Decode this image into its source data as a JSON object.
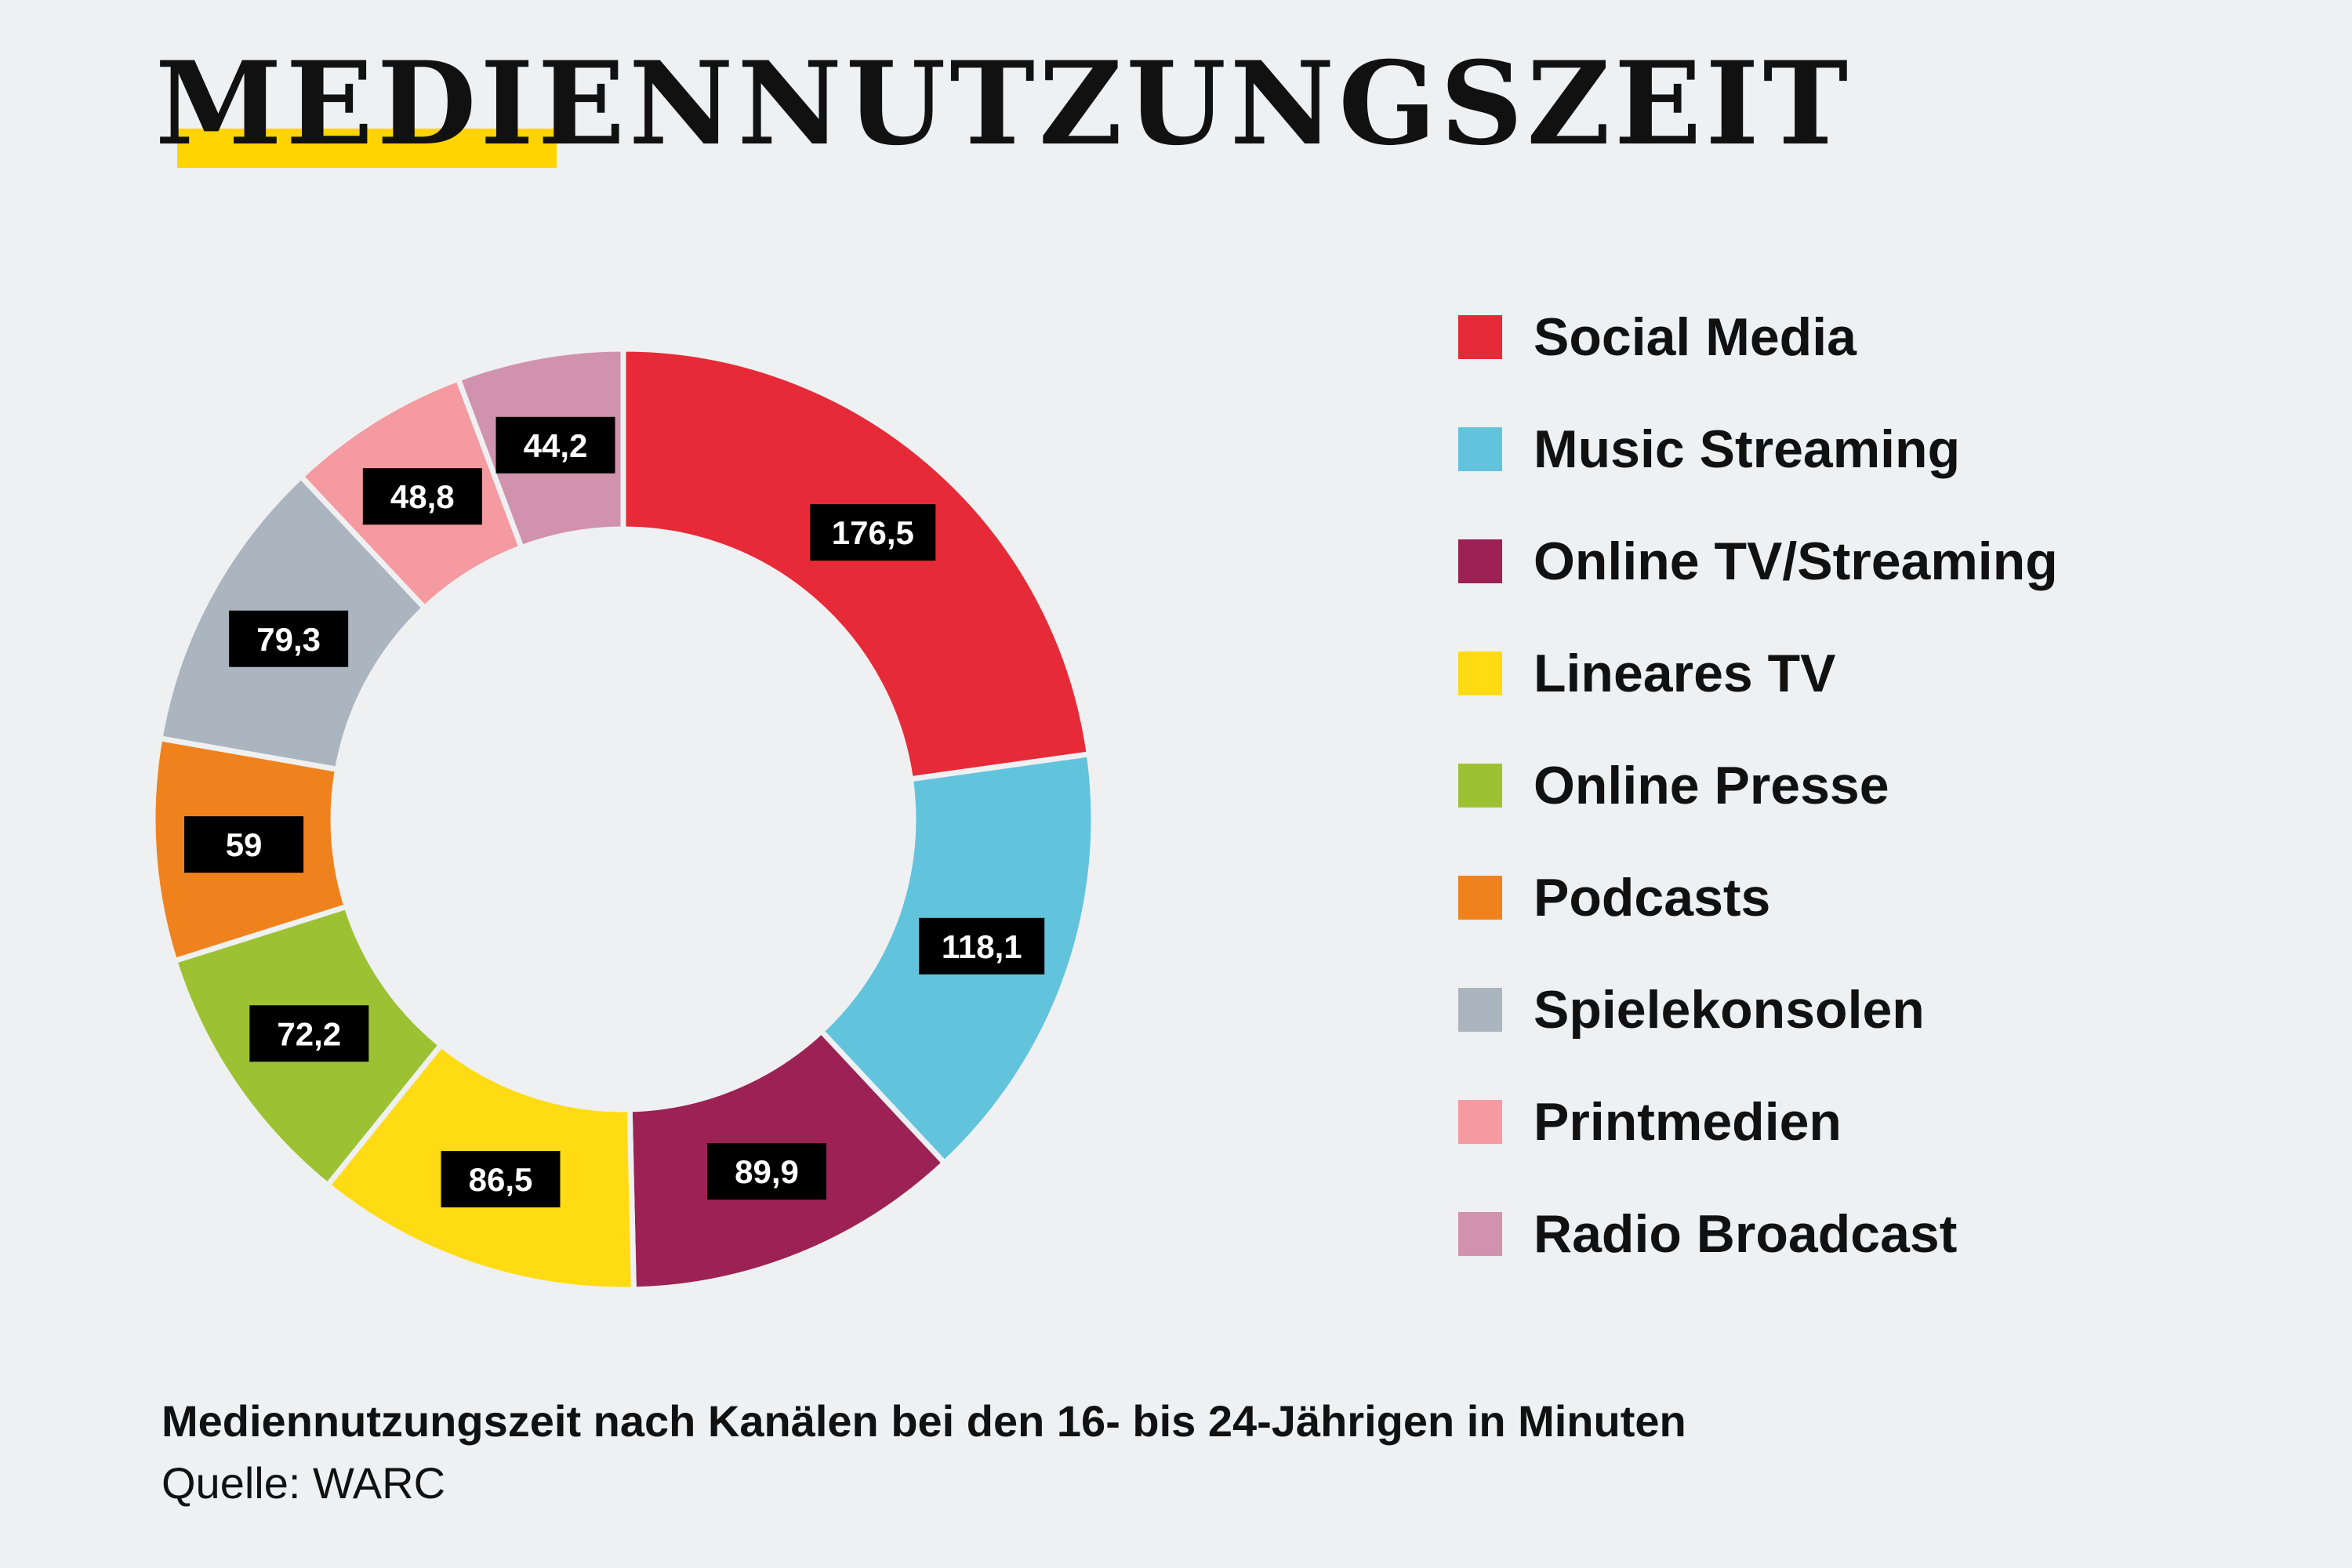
{
  "title": "MEDIENNUTZUNGSZEIT",
  "subtitle": "Mediennutzungszeit nach Kanälen bei den 16- bis 24-Jährigen in Minuten",
  "source_prefix": "Quelle: ",
  "source": "WARC",
  "colors": {
    "accent": "#ffd400",
    "background": "#eff0f1",
    "label_box": "#000000"
  },
  "chart_data": {
    "type": "pie",
    "donut": true,
    "legend_position": "right",
    "categories": [
      "Social Media",
      "Music Streaming",
      "Online TV/Streaming",
      "Lineares TV",
      "Online Presse",
      "Podcasts",
      "Spielekonsolen",
      "Printmedien",
      "Radio Broadcast"
    ],
    "values": [
      176.5,
      118.1,
      89.9,
      86.5,
      72.2,
      59,
      79.3,
      48.8,
      44.2
    ],
    "value_labels": [
      "176,5",
      "118,1",
      "89,9",
      "86,5",
      "72,2",
      "59",
      "79,3",
      "48,8",
      "44,2"
    ],
    "colors": [
      "#e62a37",
      "#62c3dd",
      "#9c2255",
      "#ffdb14",
      "#9cc234",
      "#f0821e",
      "#abb5bf",
      "#f49aa0",
      "#d092ad"
    ]
  }
}
